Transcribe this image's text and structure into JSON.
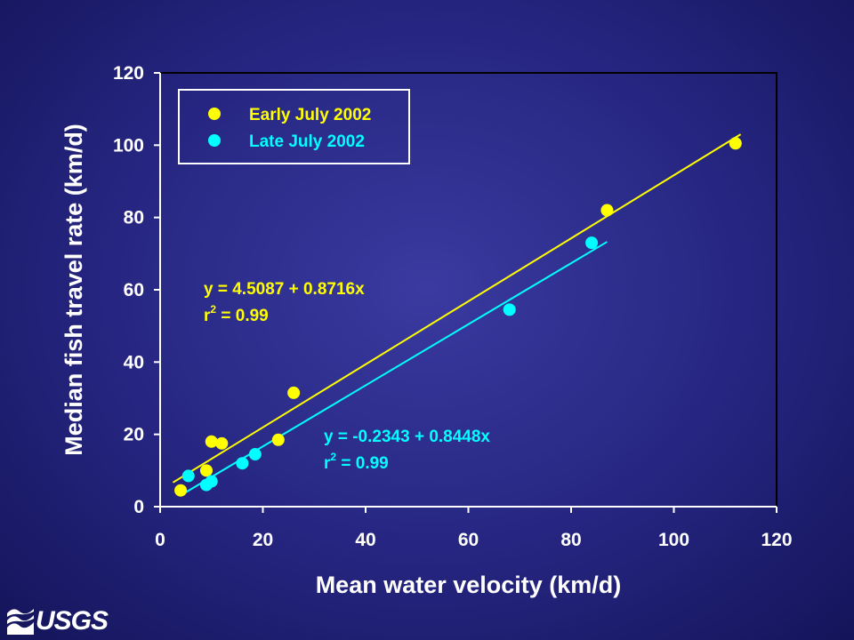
{
  "chart_data": {
    "type": "scatter",
    "title": "",
    "xlabel": "Mean water velocity (km/d)",
    "ylabel": "Median fish travel rate (km/d)",
    "xlim": [
      0,
      120
    ],
    "ylim": [
      0,
      120
    ],
    "xticks": [
      0,
      20,
      40,
      60,
      80,
      100,
      120
    ],
    "yticks": [
      0,
      20,
      40,
      60,
      80,
      100,
      120
    ],
    "grid": false,
    "legend_position": "top-left",
    "series": [
      {
        "name": "Early July 2002",
        "color": "#ffff00",
        "points": [
          [
            4,
            4.5
          ],
          [
            9,
            10
          ],
          [
            10,
            18
          ],
          [
            12,
            17.5
          ],
          [
            23,
            18.5
          ],
          [
            26,
            31.5
          ],
          [
            87,
            82
          ],
          [
            112,
            100.5
          ]
        ],
        "fit": {
          "intercept": 4.5087,
          "slope": 0.8716,
          "x_range": [
            2.5,
            113
          ]
        },
        "equation": "y = 4.5087 + 0.8716x",
        "r2_prefix": "r",
        "r2_sup": "2",
        "r2_value": " = 0.99"
      },
      {
        "name": "Late July 2002",
        "color": "#00ffff",
        "points": [
          [
            5.5,
            8.5
          ],
          [
            9,
            6
          ],
          [
            10,
            7
          ],
          [
            16,
            12
          ],
          [
            18.5,
            14.5
          ],
          [
            68,
            54.5
          ],
          [
            84,
            73
          ]
        ],
        "fit": {
          "intercept": -0.2343,
          "slope": 0.8448,
          "x_range": [
            4,
            87
          ]
        },
        "equation": "y = -0.2343 + 0.8448x",
        "r2_prefix": "r",
        "r2_sup": "2",
        "r2_value": " = 0.99"
      }
    ]
  },
  "logo": {
    "text": "USGS",
    "icon": "usgs-wave-icon"
  }
}
